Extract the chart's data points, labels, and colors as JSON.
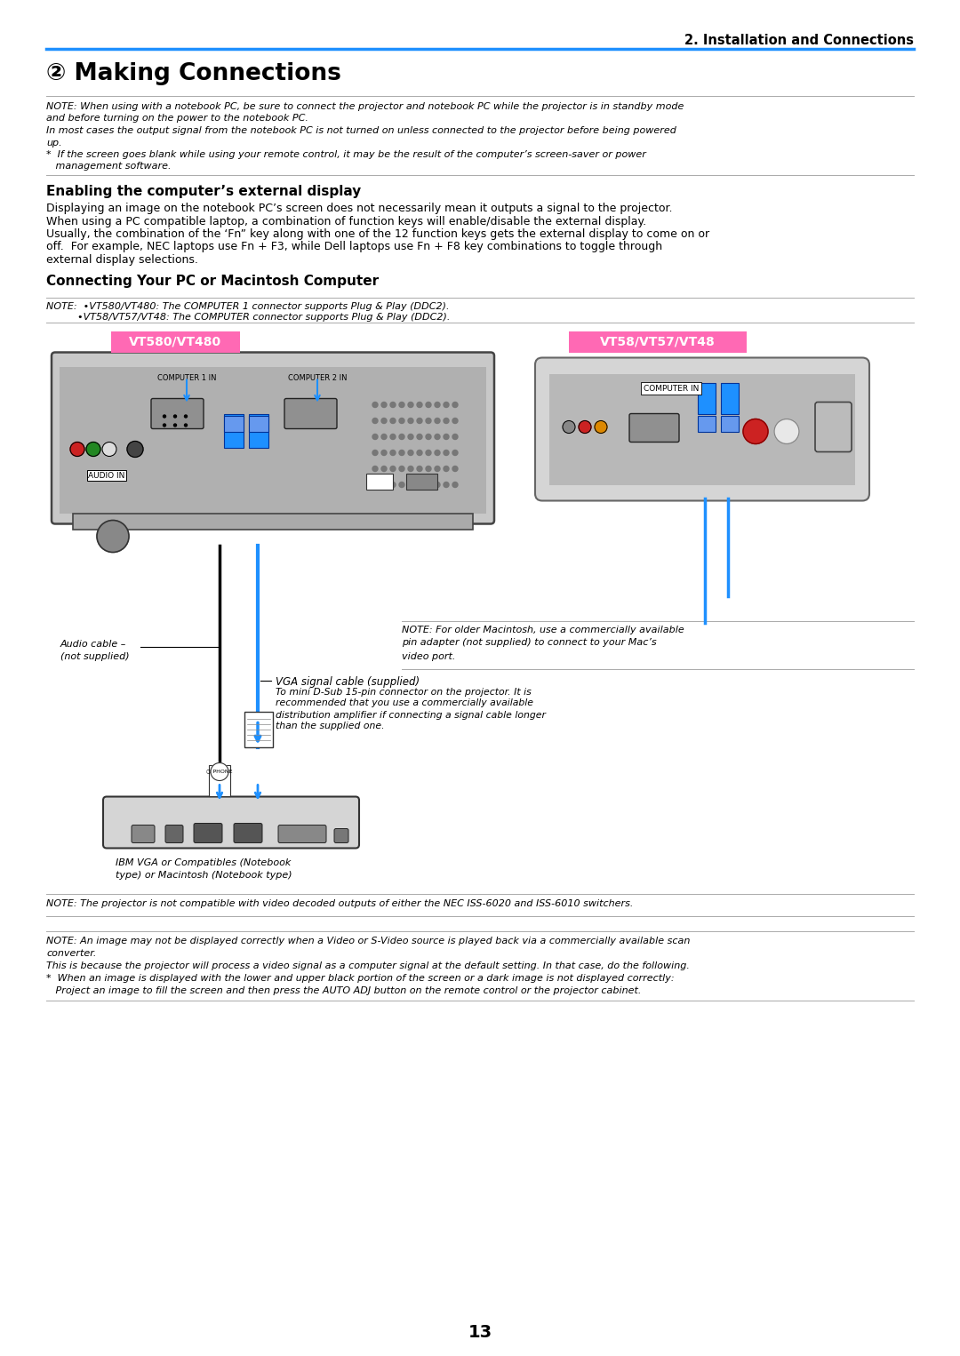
{
  "page_number": "13",
  "header_right": "2. Installation and Connections",
  "header_line_color": "#1e90ff",
  "title": "② Making Connections",
  "note1_lines": [
    "NOTE: When using with a notebook PC, be sure to connect the projector and notebook PC while the projector is in standby mode",
    "and before turning on the power to the notebook PC.",
    "In most cases the output signal from the notebook PC is not turned on unless connected to the projector before being powered",
    "up.",
    "*  If the screen goes blank while using your remote control, it may be the result of the computer’s screen-saver or power",
    "   management software."
  ],
  "section1_title": "Enabling the computer’s external display",
  "section1_lines": [
    "Displaying an image on the notebook PC’s screen does not necessarily mean it outputs a signal to the projector.",
    "When using a PC compatible laptop, a combination of function keys will enable/disable the external display.",
    "Usually, the combination of the ‘Fn” key along with one of the 12 function keys gets the external display to come on or",
    "off.  For example, NEC laptops use Fn + F3, while Dell laptops use Fn + F8 key combinations to toggle through",
    "external display selections."
  ],
  "section2_title": "Connecting Your PC or Macintosh Computer",
  "note2_line1": "NOTE:  •VT580/VT480: The COMPUTER 1 connector supports Plug & Play (DDC2).",
  "note2_line2": "          •VT58/VT57/VT48: The COMPUTER connector supports Plug & Play (DDC2).",
  "label_vt580": "VT580/VT480",
  "label_vt58": "VT58/VT57/VT48",
  "label_bg_color": "#ff69b4",
  "label_text_color": "#ffffff",
  "caption_audio_line1": "Audio cable –",
  "caption_audio_line2": "(not supplied)",
  "caption_vga_lines": [
    "VGA signal cable (supplied)",
    "To mini D-Sub 15-pin connector on the projector. It is",
    "recommended that you use a commercially available",
    "distribution amplifier if connecting a signal cable longer",
    "than the supplied one."
  ],
  "caption_mac_lines": [
    "NOTE: For older Macintosh, use a commercially available",
    "pin adapter (not supplied) to connect to your Mac’s",
    "video port."
  ],
  "caption_ibm_lines": [
    "IBM VGA or Compatibles (Notebook",
    "type) or Macintosh (Notebook type)"
  ],
  "note3": "NOTE: The projector is not compatible with video decoded outputs of either the NEC ISS-6020 and ISS-6010 switchers.",
  "note4_lines": [
    "NOTE: An image may not be displayed correctly when a Video or S-Video source is played back via a commercially available scan",
    "converter.",
    "This is because the projector will process a video signal as a computer signal at the default setting. In that case, do the following.",
    "*  When an image is displayed with the lower and upper black portion of the screen or a dark image is not displayed correctly:",
    "   Project an image to fill the screen and then press the AUTO ADJ button on the remote control or the projector cabinet."
  ],
  "bg": "#ffffff",
  "fg": "#000000",
  "blue": "#1e90ff",
  "gray_line": "#aaaaaa",
  "dark_gray": "#555555",
  "mid_gray": "#888888",
  "light_gray": "#cccccc",
  "proj_body": "#c8c8c8",
  "proj_dark": "#909090",
  "proj_darkest": "#444444"
}
